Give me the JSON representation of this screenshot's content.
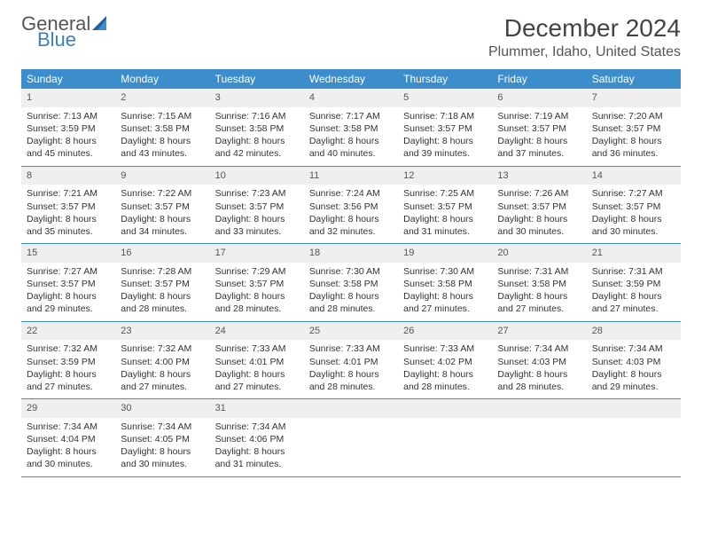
{
  "logo": {
    "word1": "General",
    "word2": "Blue"
  },
  "title": "December 2024",
  "location": "Plummer, Idaho, United States",
  "headers": [
    "Sunday",
    "Monday",
    "Tuesday",
    "Wednesday",
    "Thursday",
    "Friday",
    "Saturday"
  ],
  "colors": {
    "header_bg": "#3c8dcc",
    "header_text": "#ffffff",
    "daynum_bg": "#efefef",
    "rule": "#3c8dcc",
    "logo_blue": "#3c7fc1",
    "logo_gray": "#555555"
  },
  "weeks": [
    [
      {
        "n": "1",
        "sr": "Sunrise: 7:13 AM",
        "ss": "Sunset: 3:59 PM",
        "d1": "Daylight: 8 hours",
        "d2": "and 45 minutes."
      },
      {
        "n": "2",
        "sr": "Sunrise: 7:15 AM",
        "ss": "Sunset: 3:58 PM",
        "d1": "Daylight: 8 hours",
        "d2": "and 43 minutes."
      },
      {
        "n": "3",
        "sr": "Sunrise: 7:16 AM",
        "ss": "Sunset: 3:58 PM",
        "d1": "Daylight: 8 hours",
        "d2": "and 42 minutes."
      },
      {
        "n": "4",
        "sr": "Sunrise: 7:17 AM",
        "ss": "Sunset: 3:58 PM",
        "d1": "Daylight: 8 hours",
        "d2": "and 40 minutes."
      },
      {
        "n": "5",
        "sr": "Sunrise: 7:18 AM",
        "ss": "Sunset: 3:57 PM",
        "d1": "Daylight: 8 hours",
        "d2": "and 39 minutes."
      },
      {
        "n": "6",
        "sr": "Sunrise: 7:19 AM",
        "ss": "Sunset: 3:57 PM",
        "d1": "Daylight: 8 hours",
        "d2": "and 37 minutes."
      },
      {
        "n": "7",
        "sr": "Sunrise: 7:20 AM",
        "ss": "Sunset: 3:57 PM",
        "d1": "Daylight: 8 hours",
        "d2": "and 36 minutes."
      }
    ],
    [
      {
        "n": "8",
        "sr": "Sunrise: 7:21 AM",
        "ss": "Sunset: 3:57 PM",
        "d1": "Daylight: 8 hours",
        "d2": "and 35 minutes."
      },
      {
        "n": "9",
        "sr": "Sunrise: 7:22 AM",
        "ss": "Sunset: 3:57 PM",
        "d1": "Daylight: 8 hours",
        "d2": "and 34 minutes."
      },
      {
        "n": "10",
        "sr": "Sunrise: 7:23 AM",
        "ss": "Sunset: 3:57 PM",
        "d1": "Daylight: 8 hours",
        "d2": "and 33 minutes."
      },
      {
        "n": "11",
        "sr": "Sunrise: 7:24 AM",
        "ss": "Sunset: 3:56 PM",
        "d1": "Daylight: 8 hours",
        "d2": "and 32 minutes."
      },
      {
        "n": "12",
        "sr": "Sunrise: 7:25 AM",
        "ss": "Sunset: 3:57 PM",
        "d1": "Daylight: 8 hours",
        "d2": "and 31 minutes."
      },
      {
        "n": "13",
        "sr": "Sunrise: 7:26 AM",
        "ss": "Sunset: 3:57 PM",
        "d1": "Daylight: 8 hours",
        "d2": "and 30 minutes."
      },
      {
        "n": "14",
        "sr": "Sunrise: 7:27 AM",
        "ss": "Sunset: 3:57 PM",
        "d1": "Daylight: 8 hours",
        "d2": "and 30 minutes."
      }
    ],
    [
      {
        "n": "15",
        "sr": "Sunrise: 7:27 AM",
        "ss": "Sunset: 3:57 PM",
        "d1": "Daylight: 8 hours",
        "d2": "and 29 minutes."
      },
      {
        "n": "16",
        "sr": "Sunrise: 7:28 AM",
        "ss": "Sunset: 3:57 PM",
        "d1": "Daylight: 8 hours",
        "d2": "and 28 minutes."
      },
      {
        "n": "17",
        "sr": "Sunrise: 7:29 AM",
        "ss": "Sunset: 3:57 PM",
        "d1": "Daylight: 8 hours",
        "d2": "and 28 minutes."
      },
      {
        "n": "18",
        "sr": "Sunrise: 7:30 AM",
        "ss": "Sunset: 3:58 PM",
        "d1": "Daylight: 8 hours",
        "d2": "and 28 minutes."
      },
      {
        "n": "19",
        "sr": "Sunrise: 7:30 AM",
        "ss": "Sunset: 3:58 PM",
        "d1": "Daylight: 8 hours",
        "d2": "and 27 minutes."
      },
      {
        "n": "20",
        "sr": "Sunrise: 7:31 AM",
        "ss": "Sunset: 3:58 PM",
        "d1": "Daylight: 8 hours",
        "d2": "and 27 minutes."
      },
      {
        "n": "21",
        "sr": "Sunrise: 7:31 AM",
        "ss": "Sunset: 3:59 PM",
        "d1": "Daylight: 8 hours",
        "d2": "and 27 minutes."
      }
    ],
    [
      {
        "n": "22",
        "sr": "Sunrise: 7:32 AM",
        "ss": "Sunset: 3:59 PM",
        "d1": "Daylight: 8 hours",
        "d2": "and 27 minutes."
      },
      {
        "n": "23",
        "sr": "Sunrise: 7:32 AM",
        "ss": "Sunset: 4:00 PM",
        "d1": "Daylight: 8 hours",
        "d2": "and 27 minutes."
      },
      {
        "n": "24",
        "sr": "Sunrise: 7:33 AM",
        "ss": "Sunset: 4:01 PM",
        "d1": "Daylight: 8 hours",
        "d2": "and 27 minutes."
      },
      {
        "n": "25",
        "sr": "Sunrise: 7:33 AM",
        "ss": "Sunset: 4:01 PM",
        "d1": "Daylight: 8 hours",
        "d2": "and 28 minutes."
      },
      {
        "n": "26",
        "sr": "Sunrise: 7:33 AM",
        "ss": "Sunset: 4:02 PM",
        "d1": "Daylight: 8 hours",
        "d2": "and 28 minutes."
      },
      {
        "n": "27",
        "sr": "Sunrise: 7:34 AM",
        "ss": "Sunset: 4:03 PM",
        "d1": "Daylight: 8 hours",
        "d2": "and 28 minutes."
      },
      {
        "n": "28",
        "sr": "Sunrise: 7:34 AM",
        "ss": "Sunset: 4:03 PM",
        "d1": "Daylight: 8 hours",
        "d2": "and 29 minutes."
      }
    ],
    [
      {
        "n": "29",
        "sr": "Sunrise: 7:34 AM",
        "ss": "Sunset: 4:04 PM",
        "d1": "Daylight: 8 hours",
        "d2": "and 30 minutes."
      },
      {
        "n": "30",
        "sr": "Sunrise: 7:34 AM",
        "ss": "Sunset: 4:05 PM",
        "d1": "Daylight: 8 hours",
        "d2": "and 30 minutes."
      },
      {
        "n": "31",
        "sr": "Sunrise: 7:34 AM",
        "ss": "Sunset: 4:06 PM",
        "d1": "Daylight: 8 hours",
        "d2": "and 31 minutes."
      },
      null,
      null,
      null,
      null
    ]
  ]
}
